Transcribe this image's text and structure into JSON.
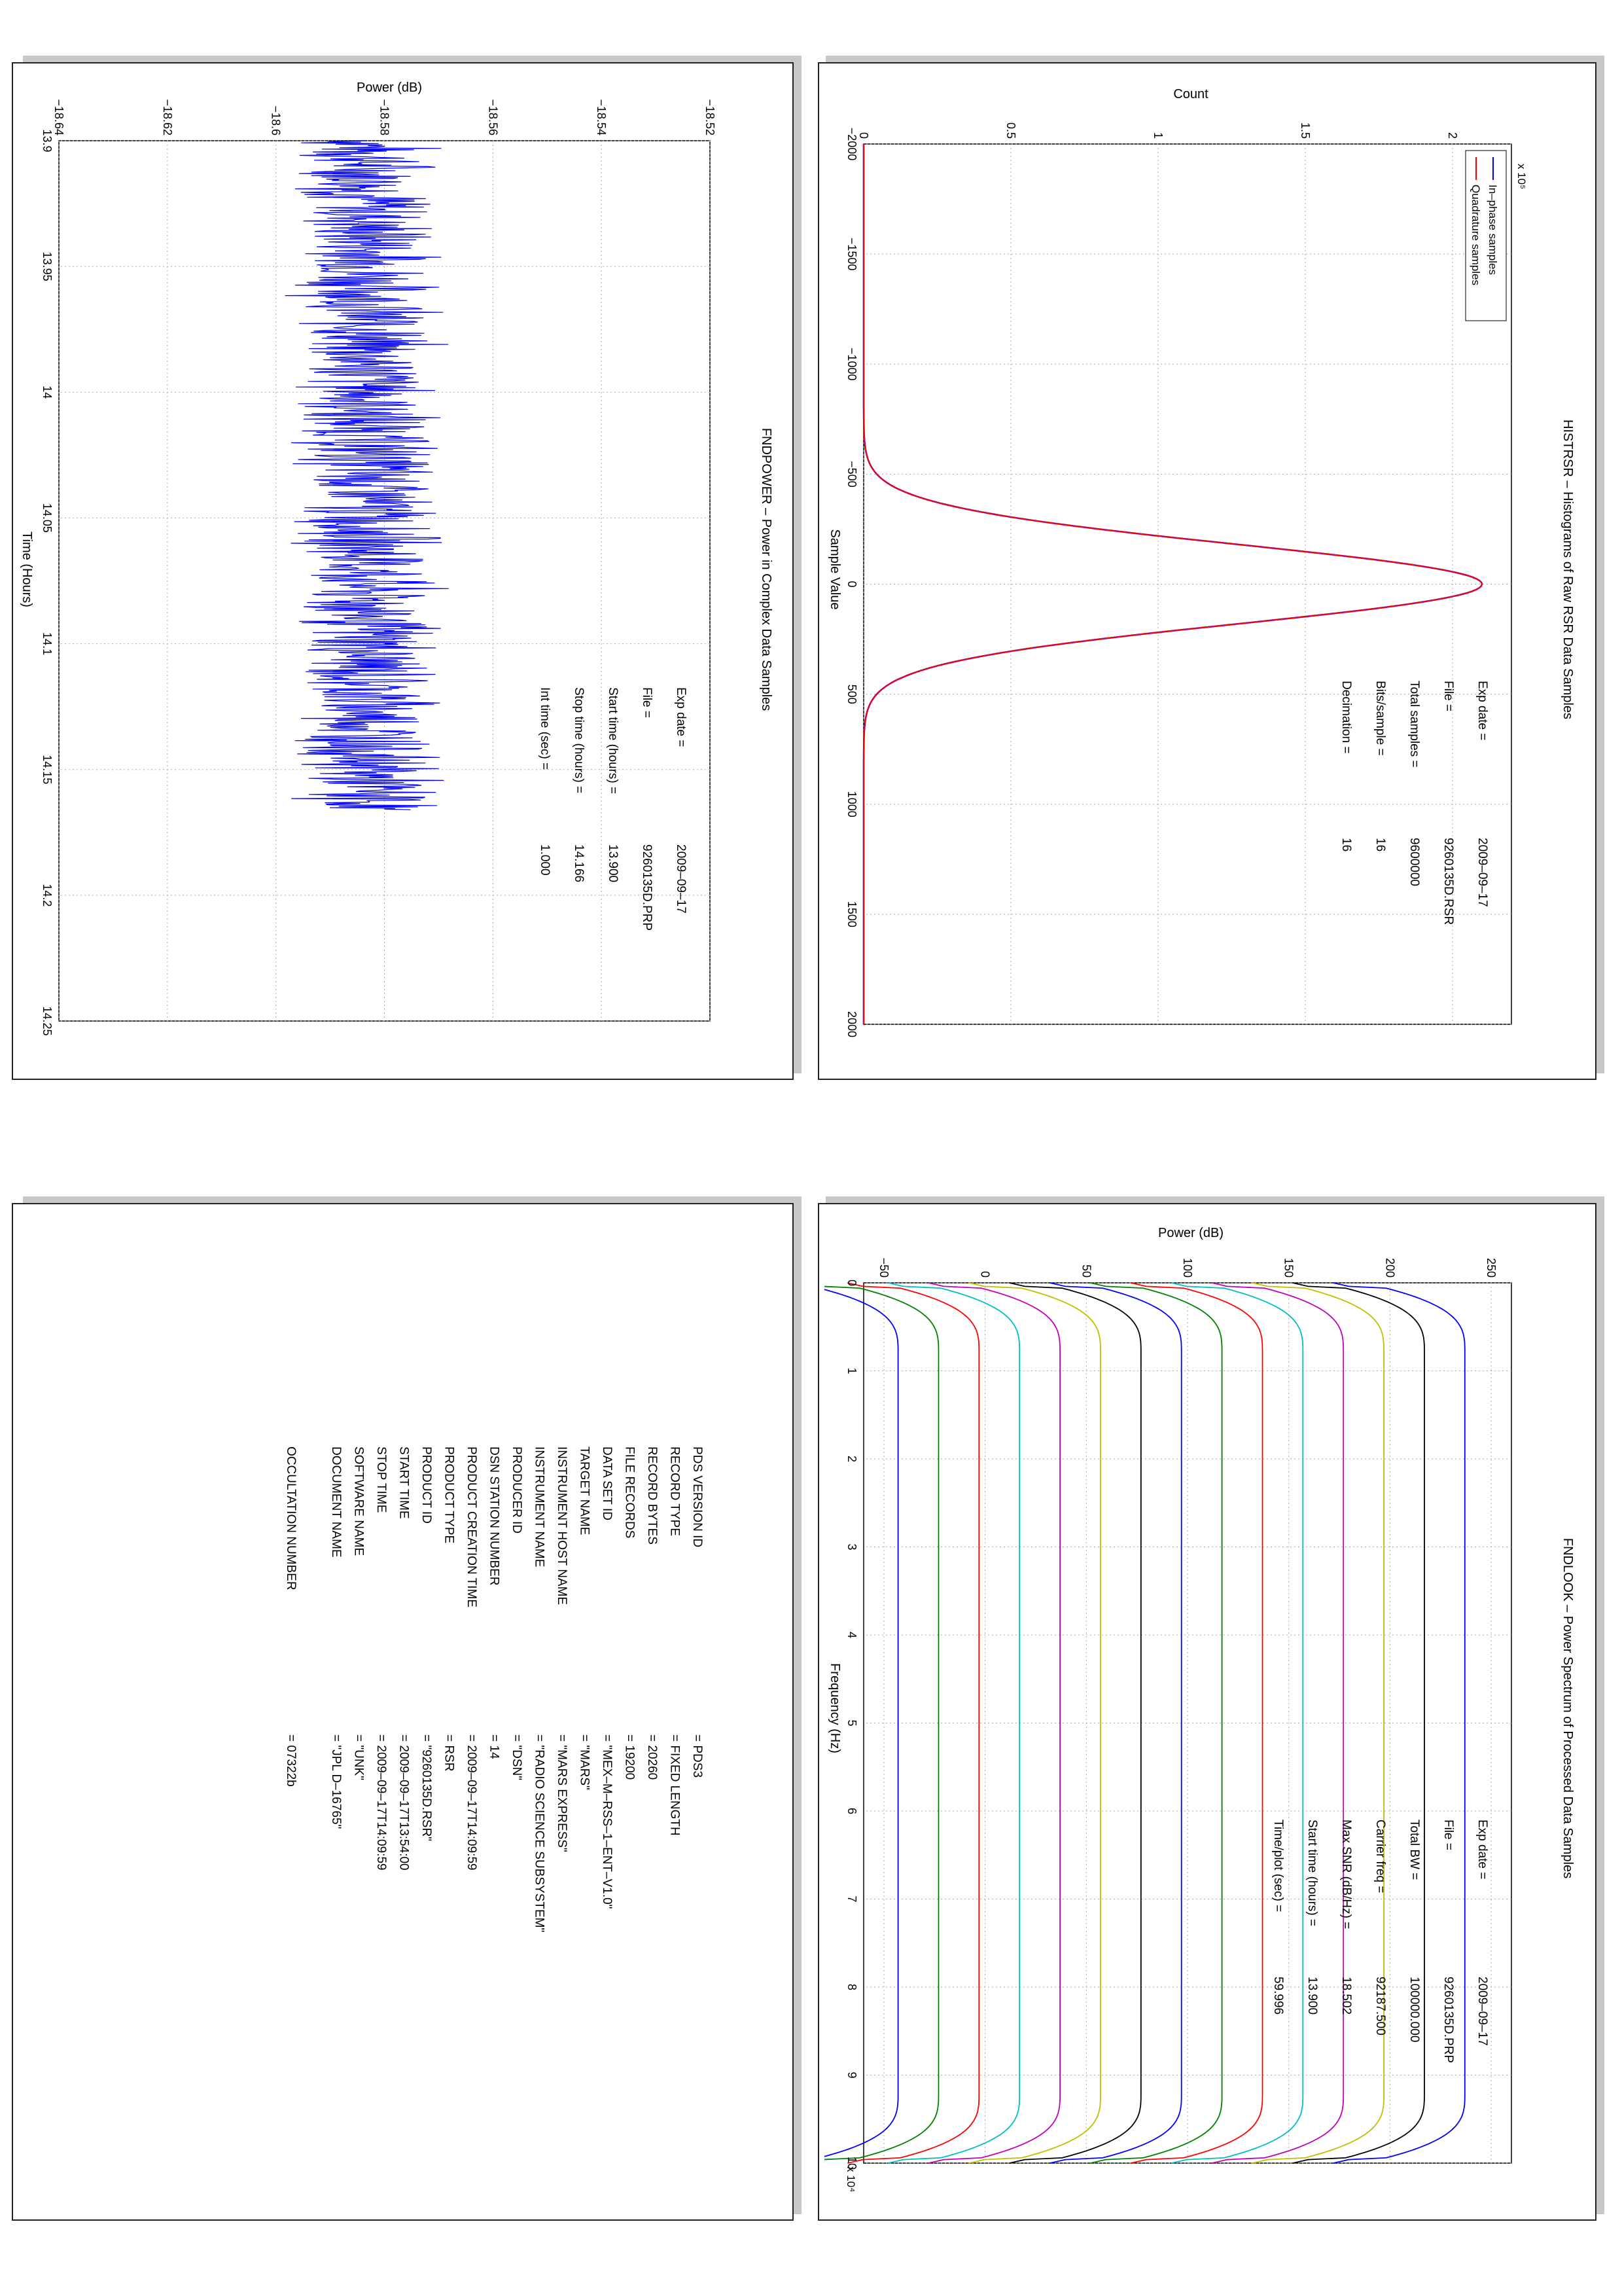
{
  "panels": {
    "histogram": {
      "title": "HISTRSR – Histograms of Raw RSR Data Samples",
      "xlabel": "Sample Value",
      "ylabel": "Count",
      "exponent": "x 10⁵",
      "legend": [
        "In–phase samples",
        "Quadrature samples"
      ],
      "info": [
        {
          "label": "Exp date =",
          "value": "2009–09–17"
        },
        {
          "label": "File =",
          "value": "9260135D.RSR"
        },
        {
          "label": "Total samples =",
          "value": "9600000"
        },
        {
          "label": "Bits/sample  =",
          "value": "16"
        },
        {
          "label": "Decimation   =",
          "value": "16"
        }
      ],
      "xticks": [
        "−2000",
        "−1500",
        "−1000",
        "−500",
        "0",
        "500",
        "1000",
        "1500",
        "2000"
      ],
      "yticks": [
        "0",
        "0.5",
        "1",
        "1.5",
        "2"
      ]
    },
    "power": {
      "title": "FNDPOWER – Power in Complex Data Samples",
      "xlabel": "Time (Hours)",
      "ylabel": "Power (dB)",
      "info": [
        {
          "label": "Exp date =",
          "value": "2009–09–17"
        },
        {
          "label": "File =",
          "value": "9260135D.PRP"
        },
        {
          "label": "Start time (hours) =",
          "value": "13.900"
        },
        {
          "label": "Stop time (hours) =",
          "value": "14.166"
        },
        {
          "label": "Int time (sec) =",
          "value": "1.000"
        }
      ],
      "xticks": [
        "13.9",
        "13.95",
        "14",
        "14.05",
        "14.1",
        "14.15",
        "14.2",
        "14.25"
      ],
      "yticks": [
        "−18.64",
        "−18.62",
        "−18.6",
        "−18.58",
        "−18.56",
        "−18.54",
        "−18.52"
      ]
    },
    "spectrum": {
      "title": "FNDLOOK – Power Spectrum of Processed Data Samples",
      "xlabel": "Frequency (Hz)",
      "ylabel": "Power (dB)",
      "exponent": "x 10⁴",
      "info": [
        {
          "label": "Exp date =",
          "value": "2009–09–17"
        },
        {
          "label": "File =",
          "value": "9260135D.PRP"
        },
        {
          "label": "Total BW =",
          "value": "100000.000"
        },
        {
          "label": "Carrier freq =",
          "value": "92187.500"
        },
        {
          "label": "Max SNR (dB/Hz) =",
          "value": "18.502"
        },
        {
          "label": "Start time (hours) =",
          "value": "13.900"
        },
        {
          "label": "Time/plot (sec) =",
          "value": "59.996"
        }
      ],
      "xticks": [
        "0",
        "1",
        "2",
        "3",
        "4",
        "5",
        "6",
        "7",
        "8",
        "9",
        "10"
      ],
      "yticks": [
        "−50",
        "0",
        "50",
        "100",
        "150",
        "200",
        "250"
      ]
    },
    "label": {
      "rows": [
        {
          "key": "PDS VERSION ID",
          "value": "= PDS3"
        },
        {
          "key": "RECORD TYPE",
          "value": "= FIXED LENGTH"
        },
        {
          "key": "RECORD BYTES",
          "value": "= 20260"
        },
        {
          "key": "FILE RECORDS",
          "value": "= 19200"
        },
        {
          "key": "DATA SET ID",
          "value": "= \"MEX–M–RSS–1–ENT–V1.0\""
        },
        {
          "key": "TARGET NAME",
          "value": "= \"MARS\""
        },
        {
          "key": "INSTRUMENT HOST NAME",
          "value": "= \"MARS EXPRESS\""
        },
        {
          "key": "INSTRUMENT NAME",
          "value": "= \"RADIO SCIENCE SUBSYSTEM\""
        },
        {
          "key": "PRODUCER ID",
          "value": "= \"DSN\""
        },
        {
          "key": "DSN STATION NUMBER",
          "value": "= 14"
        },
        {
          "key": "PRODUCT CREATION TIME",
          "value": "= 2009–09–17T14:09:59"
        },
        {
          "key": "PRODUCT TYPE",
          "value": "= RSR"
        },
        {
          "key": "PRODUCT ID",
          "value": "= \"9260135D.RSR\""
        },
        {
          "key": "START TIME",
          "value": "= 2009–09–17T13:54:00"
        },
        {
          "key": "STOP TIME",
          "value": "= 2009–09–17T14:09:59"
        },
        {
          "key": "SOFTWARE NAME",
          "value": "= \"UNK\""
        },
        {
          "key": "DOCUMENT NAME",
          "value": "= \"JPL D–16765\""
        },
        {
          "key": "",
          "value": ""
        },
        {
          "key": "OCCULTATION NUMBER",
          "value": "= 07322b"
        }
      ]
    }
  },
  "chart_data": [
    {
      "type": "line",
      "title": "HISTRSR – Histograms of Raw RSR Data Samples",
      "xlabel": "Sample Value",
      "ylabel": "Count",
      "xlim": [
        -2000,
        2000
      ],
      "ylim": [
        0,
        2.2
      ],
      "y_multiplier": 100000,
      "grid": true,
      "legend_position": "top-left",
      "series": [
        {
          "name": "In–phase samples",
          "color": "#0000ff",
          "gaussian": {
            "peak": 2.1,
            "sigma": 180
          }
        },
        {
          "name": "Quadrature samples",
          "color": "#ff0000",
          "gaussian": {
            "peak": 2.1,
            "sigma": 180
          }
        }
      ]
    },
    {
      "type": "line",
      "title": "FNDPOWER – Power in Complex Data Samples",
      "xlabel": "Time (Hours)",
      "ylabel": "Power (dB)",
      "xlim": [
        13.9,
        14.25
      ],
      "ylim": [
        -18.64,
        -18.52
      ],
      "grid": true,
      "series": [
        {
          "color": "#0000ff",
          "x_range": [
            13.9,
            14.166
          ],
          "n_points": 960,
          "mean": -18.583,
          "amplitude": 0.013
        }
      ]
    },
    {
      "type": "line",
      "title": "FNDLOOK – Power Spectrum of Processed Data Samples",
      "xlabel": "Frequency (Hz)",
      "ylabel": "Power (dB)",
      "xlim": [
        0,
        10
      ],
      "x_multiplier": 10000,
      "ylim": [
        -60,
        260
      ],
      "grid": true,
      "series": [
        {
          "color": "#0000ff",
          "level": 237
        },
        {
          "color": "#000000",
          "level": 217
        },
        {
          "color": "#bfbf00",
          "level": 197
        },
        {
          "color": "#bf00bf",
          "level": 177
        },
        {
          "color": "#00bfbf",
          "level": 157
        },
        {
          "color": "#ff0000",
          "level": 137
        },
        {
          "color": "#008000",
          "level": 117
        },
        {
          "color": "#0000ff",
          "level": 97
        },
        {
          "color": "#000000",
          "level": 77
        },
        {
          "color": "#bfbf00",
          "level": 57
        },
        {
          "color": "#bf00bf",
          "level": 37
        },
        {
          "color": "#00bfbf",
          "level": 17
        },
        {
          "color": "#ff0000",
          "level": -3
        },
        {
          "color": "#008000",
          "level": -23
        },
        {
          "color": "#0000ff",
          "level": -43
        }
      ]
    }
  ]
}
